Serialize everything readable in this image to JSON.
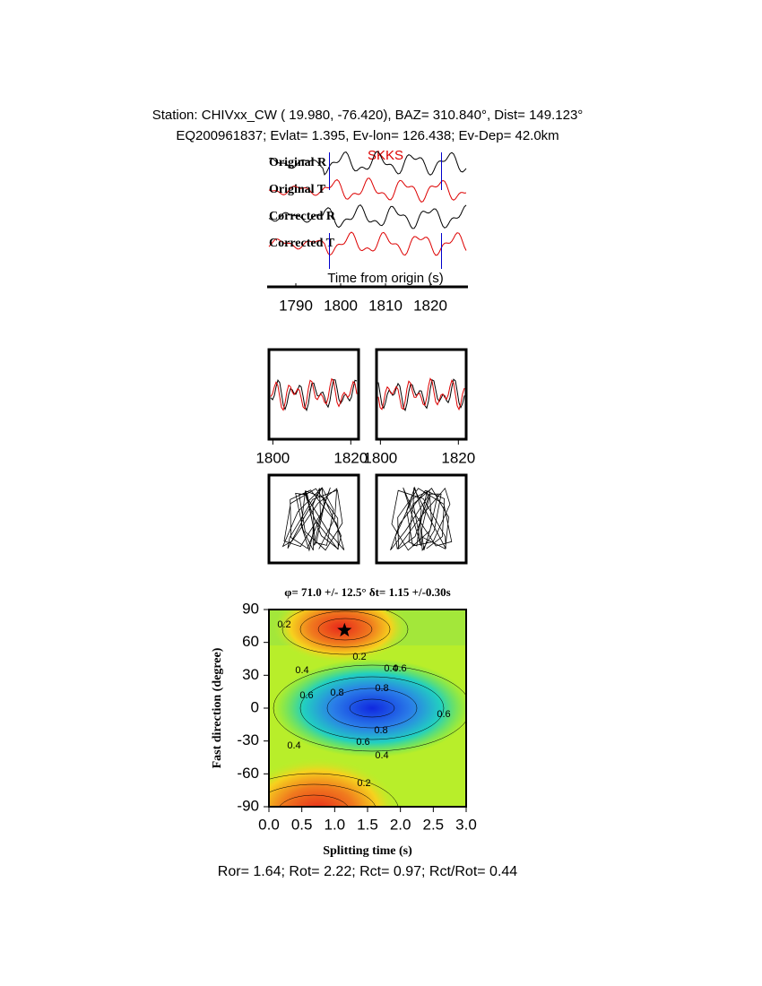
{
  "header": {
    "line1": "Station: CHIVxx_CW (  19.980,  -76.420), BAZ=  310.840°, Dist=  149.123°",
    "line2": "EQ200961837; Evlat=   1.395, Ev-lon= 126.438; Ev-Dep= 42.0km"
  },
  "traces": {
    "labels": [
      "Original R",
      "Original T",
      "Corrected R",
      "Corrected T"
    ],
    "phase": "SKKS",
    "xlabel": "Time from origin (s)",
    "xlim": [
      1784,
      1828
    ],
    "xticks": [
      1790,
      1800,
      1810,
      1820
    ],
    "window": [
      1797.5,
      1822.5
    ]
  },
  "waveform_panels": {
    "xlim": [
      1799,
      1822
    ],
    "xticks": [
      1800,
      1820
    ]
  },
  "grid_search": {
    "title": "φ= 71.0 +/- 12.5° δt= 1.15 +/-0.30s",
    "xlabel": "Splitting time (s)",
    "ylabel": "Fast direction (degree)",
    "xlim": [
      0,
      3
    ],
    "ylim": [
      -90,
      90
    ],
    "xticks": [
      {
        "value": 0,
        "label": "0.0"
      },
      0.5,
      {
        "value": 1,
        "label": "1.0"
      },
      1.5,
      {
        "value": 2,
        "label": "2.0"
      },
      2.5,
      {
        "value": 3,
        "label": "3.0"
      }
    ],
    "yticks": [
      -90,
      -60,
      -30,
      0,
      30,
      60,
      90
    ],
    "best": {
      "dt": 1.15,
      "phi": 71.0
    },
    "contour_levels": [
      0.2,
      0.4,
      0.6,
      0.8
    ]
  },
  "footer": "Ror= 1.64; Rot= 2.22; Rct= 0.97; Rct/Rot= 0.44"
}
